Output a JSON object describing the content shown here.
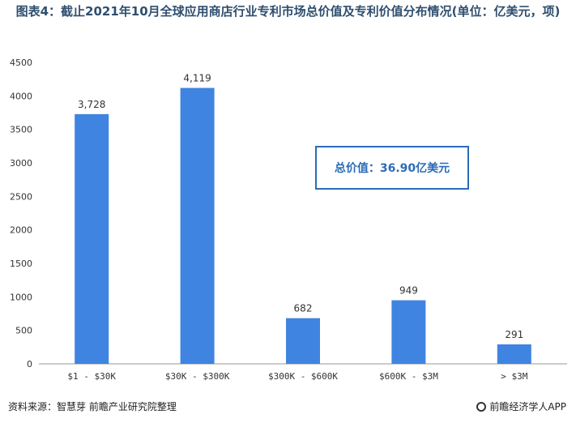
{
  "title": "图表4：截止2021年10月全球应用商店行业专利市场总价值及专利价值分布情况(单位：亿美元，项)",
  "annotation": "总价值：36.90亿美元",
  "footer": {
    "source": "资料来源：智慧芽 前瞻产业研究院整理",
    "brand": "前瞻经济学人APP"
  },
  "colors": {
    "bar": "#3f84e0",
    "box": "#2b6cb8",
    "axis": "#999999"
  },
  "chart_data": {
    "type": "bar",
    "categories": [
      "$1 - $30K",
      "$30K - $300K",
      "$300K - $600K",
      "$600K - $3M",
      "> $3M"
    ],
    "values": [
      3728,
      4119,
      682,
      949,
      291
    ],
    "value_labels": [
      "3,728",
      "4,119",
      "682",
      "949",
      "291"
    ],
    "ylim": [
      0,
      4500
    ],
    "yticks": [
      0,
      500,
      1000,
      1500,
      2000,
      2500,
      3000,
      3500,
      4000,
      4500
    ],
    "grid": false,
    "legend": "none"
  }
}
